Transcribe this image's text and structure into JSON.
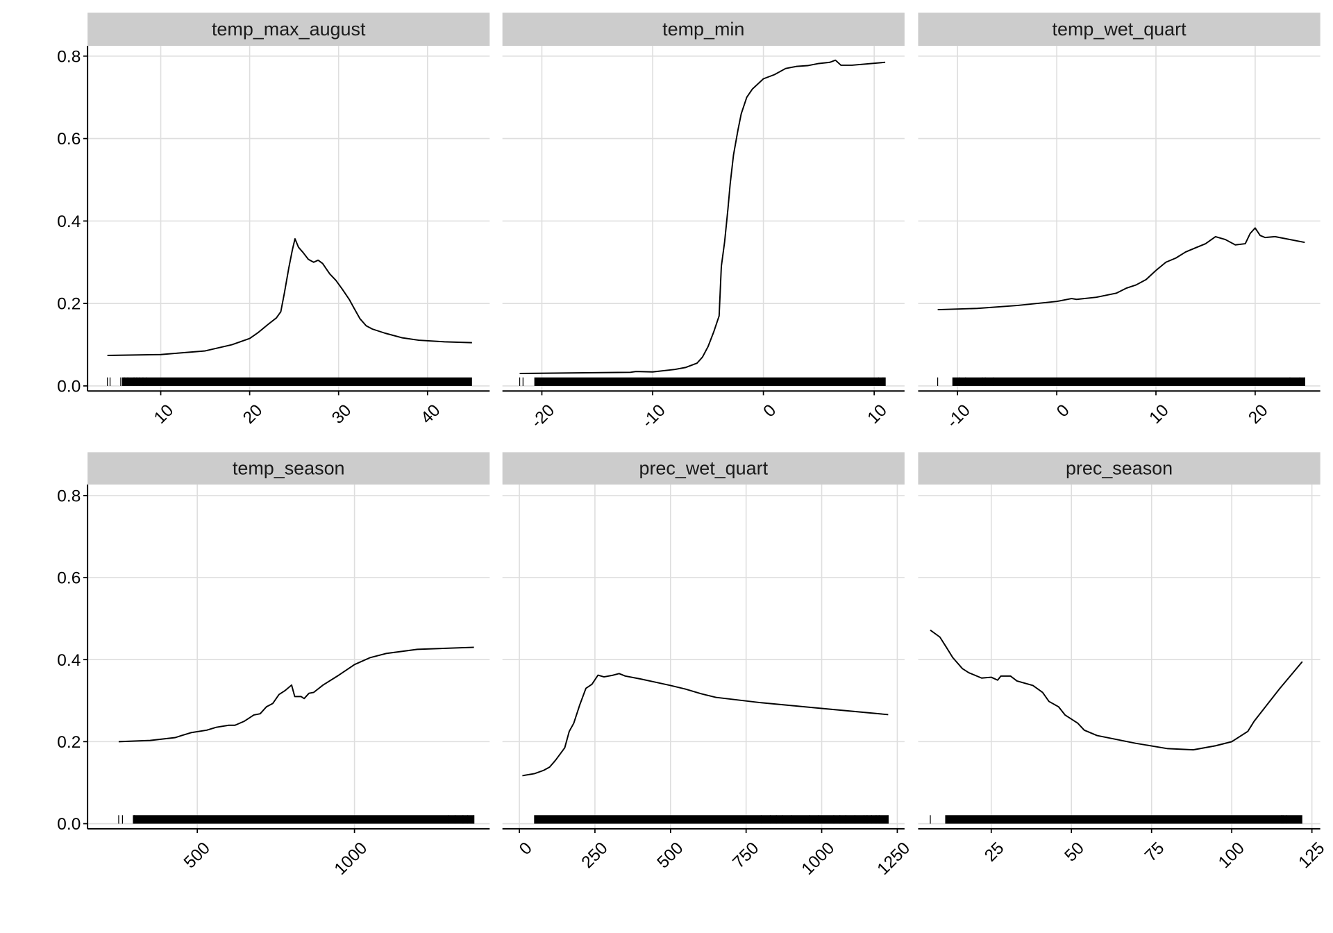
{
  "chart_data": [
    {
      "type": "line",
      "title": "temp_max_august",
      "xlim": [
        1.77,
        46.99
      ],
      "ylim": [
        0,
        0.8
      ],
      "xticks": [
        10,
        20,
        30,
        40
      ],
      "yticks": [
        0,
        0.2,
        0.4,
        0.6,
        0.8
      ],
      "ytick_labels": [
        "0.0",
        "0.2",
        "0.4",
        "0.6",
        "0.8"
      ],
      "grid": true,
      "rug_range": [
        4,
        45
      ],
      "rug_sparse": [
        4,
        4.3,
        5.5,
        5.9,
        6.3,
        7,
        7.3,
        7.6,
        8,
        8.4
      ],
      "x": [
        4,
        10,
        15,
        18,
        20,
        21,
        22,
        23,
        23.5,
        23.9,
        24.4,
        24.8,
        25.1,
        25.5,
        26,
        26.6,
        27.2,
        27.7,
        28.2,
        29,
        29.7,
        30.4,
        31.2,
        31.7,
        32.4,
        33.1,
        33.8,
        35.2,
        37.1,
        39,
        41.9,
        45
      ],
      "y": [
        0.074,
        0.076,
        0.085,
        0.1,
        0.115,
        0.13,
        0.148,
        0.165,
        0.18,
        0.225,
        0.286,
        0.33,
        0.357,
        0.336,
        0.324,
        0.307,
        0.3,
        0.305,
        0.297,
        0.272,
        0.256,
        0.235,
        0.21,
        0.19,
        0.163,
        0.146,
        0.138,
        0.128,
        0.117,
        0.111,
        0.107,
        0.105
      ]
    },
    {
      "type": "line",
      "title": "temp_min",
      "xlim": [
        -23.56,
        12.74
      ],
      "ylim": [
        0,
        0.8
      ],
      "xticks": [
        -20,
        -10,
        0,
        10
      ],
      "grid": true,
      "rug_range": [
        -22,
        11
      ],
      "rug_sparse": [
        -22,
        -21.7,
        10.4,
        10.8,
        11
      ],
      "x": [
        -22,
        -12,
        -11.5,
        -10,
        -8,
        -7,
        -6,
        -5.5,
        -5,
        -4.5,
        -4,
        -3.8,
        -3.5,
        -3.2,
        -3,
        -2.7,
        -2.3,
        -2,
        -1.5,
        -1,
        0,
        1,
        2,
        3,
        4,
        5,
        6,
        6.5,
        7,
        8,
        11
      ],
      "y": [
        0.03,
        0.033,
        0.035,
        0.034,
        0.04,
        0.045,
        0.055,
        0.07,
        0.095,
        0.13,
        0.17,
        0.29,
        0.35,
        0.43,
        0.49,
        0.56,
        0.62,
        0.66,
        0.7,
        0.72,
        0.745,
        0.755,
        0.77,
        0.775,
        0.777,
        0.782,
        0.785,
        0.79,
        0.778,
        0.778,
        0.785
      ]
    },
    {
      "type": "line",
      "title": "temp_wet_quart",
      "xlim": [
        -13.97,
        26.56
      ],
      "ylim": [
        0,
        0.8
      ],
      "xticks": [
        -10,
        0,
        10,
        20
      ],
      "grid": true,
      "rug_range": [
        -12,
        25
      ],
      "rug_sparse": [
        -12,
        -9.8,
        -9.2,
        -7.5,
        -7.2,
        -6.4,
        23.5,
        24.5,
        25
      ],
      "x": [
        -12,
        -8,
        -4,
        0,
        1.5,
        2,
        4,
        6,
        7,
        8,
        9,
        10,
        11,
        12,
        13,
        14,
        15,
        16,
        17,
        18,
        19,
        19.5,
        20,
        20.5,
        21,
        22,
        25
      ],
      "y": [
        0.185,
        0.188,
        0.195,
        0.205,
        0.212,
        0.21,
        0.215,
        0.225,
        0.237,
        0.245,
        0.258,
        0.28,
        0.3,
        0.31,
        0.325,
        0.335,
        0.345,
        0.362,
        0.355,
        0.342,
        0.345,
        0.37,
        0.383,
        0.365,
        0.36,
        0.362,
        0.348
      ]
    },
    {
      "type": "line",
      "title": "temp_season",
      "xlim": [
        151,
        1430
      ],
      "ylim": [
        0,
        0.8
      ],
      "xticks": [
        500,
        1000
      ],
      "grid": true,
      "rug_range": [
        250,
        1380
      ],
      "rug_sparse": [
        250,
        262,
        300,
        1300,
        1320,
        1345,
        1360,
        1380
      ],
      "x": [
        250,
        350,
        430,
        450,
        480,
        530,
        560,
        600,
        620,
        650,
        680,
        700,
        720,
        740,
        760,
        780,
        800,
        810,
        830,
        840,
        855,
        870,
        900,
        950,
        1000,
        1050,
        1100,
        1200,
        1380
      ],
      "y": [
        0.2,
        0.203,
        0.21,
        0.215,
        0.222,
        0.228,
        0.235,
        0.24,
        0.24,
        0.25,
        0.265,
        0.268,
        0.285,
        0.293,
        0.315,
        0.325,
        0.338,
        0.31,
        0.31,
        0.305,
        0.318,
        0.32,
        0.338,
        0.362,
        0.388,
        0.405,
        0.415,
        0.425,
        0.43
      ]
    },
    {
      "type": "line",
      "title": "prec_wet_quart",
      "xlim": [
        -56,
        1274
      ],
      "ylim": [
        0,
        0.8
      ],
      "xticks": [
        0,
        250,
        500,
        750,
        1000,
        1250
      ],
      "grid": true,
      "rug_range": [
        0,
        1220
      ],
      "rug_sparse": [
        800,
        830,
        850,
        870,
        900,
        960,
        990,
        1040,
        1060,
        1080,
        1110,
        1140,
        1150,
        1165,
        1180,
        1190,
        1220
      ],
      "x": [
        10,
        50,
        80,
        100,
        120,
        150,
        165,
        180,
        200,
        220,
        240,
        260,
        280,
        310,
        330,
        350,
        400,
        450,
        500,
        550,
        600,
        650,
        800,
        1000,
        1220
      ],
      "y": [
        0.117,
        0.122,
        0.13,
        0.138,
        0.155,
        0.185,
        0.225,
        0.245,
        0.29,
        0.33,
        0.34,
        0.362,
        0.358,
        0.362,
        0.366,
        0.36,
        0.353,
        0.345,
        0.337,
        0.328,
        0.317,
        0.308,
        0.295,
        0.281,
        0.266
      ]
    },
    {
      "type": "line",
      "title": "prec_season",
      "xlim": [
        2.2,
        127.6
      ],
      "ylim": [
        0,
        0.8
      ],
      "xticks": [
        25,
        50,
        75,
        100,
        125
      ],
      "grid": true,
      "rug_range": [
        6,
        122
      ],
      "rug_sparse": [
        6,
        115.5,
        116,
        117
      ],
      "x": [
        6,
        9,
        11,
        13,
        16,
        18,
        22,
        25,
        27,
        28,
        31,
        33,
        38,
        41,
        43,
        46,
        48,
        52,
        54,
        58,
        70,
        80,
        88,
        95,
        100,
        105,
        107,
        115,
        122
      ],
      "y": [
        0.472,
        0.455,
        0.43,
        0.405,
        0.378,
        0.368,
        0.355,
        0.357,
        0.35,
        0.36,
        0.36,
        0.348,
        0.337,
        0.32,
        0.298,
        0.285,
        0.265,
        0.245,
        0.228,
        0.215,
        0.196,
        0.183,
        0.18,
        0.19,
        0.2,
        0.225,
        0.25,
        0.33,
        0.395
      ]
    }
  ],
  "colors": {
    "strip": "#cccccc",
    "grid": "#dedede",
    "line": "#000000"
  }
}
